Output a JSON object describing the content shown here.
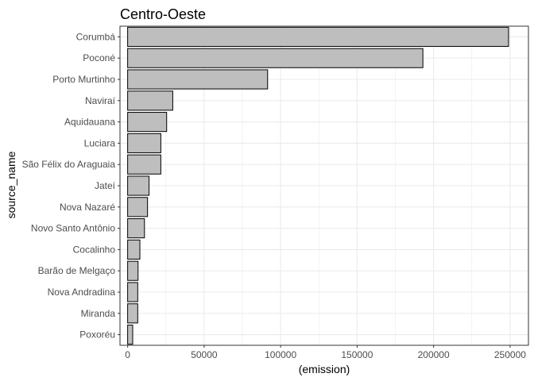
{
  "chart_data": {
    "type": "bar",
    "orientation": "horizontal",
    "title": "Centro-Oeste",
    "xlabel": "(emission)",
    "ylabel": "source_name",
    "xlim": [
      -5000,
      262000
    ],
    "xticks": [
      0,
      50000,
      100000,
      150000,
      200000,
      250000
    ],
    "xtick_labels": [
      "0",
      "50000",
      "100000",
      "150000",
      "200000",
      "250000"
    ],
    "grid": true,
    "legend": "none",
    "categories": [
      "Corumbá",
      "Poconé",
      "Porto Murtinho",
      "Naviraí",
      "Aquidauana",
      "Luciara",
      "São Félix do Araguaia",
      "Jateí",
      "Nova Nazaré",
      "Novo Santo Antônio",
      "Cocalinho",
      "Barão de Melgaço",
      "Nova Andradina",
      "Miranda",
      "Poxoréu"
    ],
    "values": [
      249000,
      193000,
      91500,
      29500,
      25500,
      21700,
      21700,
      14000,
      13000,
      11000,
      8000,
      6800,
      6600,
      6600,
      3300
    ],
    "colors": {
      "bar_fill": "#bebebe",
      "bar_stroke": "#000000",
      "panel_border": "#333333",
      "grid": "#ebebeb"
    }
  }
}
